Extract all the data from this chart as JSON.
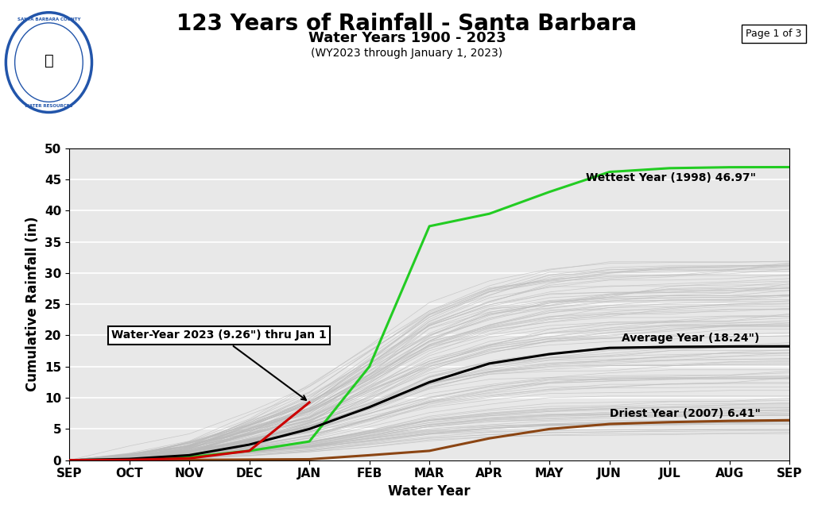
{
  "title": "123 Years of Rainfall - Santa Barbara",
  "subtitle": "Water Years 1900 - 2023",
  "sub_subtitle": "(WY2023 through January 1, 2023)",
  "page_label": "Page 1 of 3",
  "xlabel": "Water Year",
  "ylabel": "Cumulative Rainfall (in)",
  "ylim": [
    0,
    50
  ],
  "months": [
    "SEP",
    "OCT",
    "NOV",
    "DEC",
    "JAN",
    "FEB",
    "MAR",
    "APR",
    "MAY",
    "JUN",
    "JUL",
    "AUG",
    "SEP"
  ],
  "background_color": "#e8e8e8",
  "figure_background": "#ffffff",
  "wettest_label": "Wettest Year (1998) 46.97\"",
  "wettest_color": "#22cc22",
  "wettest_data": [
    0,
    0.1,
    0.5,
    1.5,
    3.0,
    15.0,
    37.5,
    39.5,
    43.0,
    46.2,
    46.8,
    46.95,
    46.97
  ],
  "driest_label": "Driest Year (2007) 6.41\"",
  "driest_color": "#8B4513",
  "driest_data": [
    0,
    0.0,
    0.05,
    0.1,
    0.15,
    0.8,
    1.5,
    3.5,
    5.0,
    5.8,
    6.1,
    6.3,
    6.41
  ],
  "average_label": "Average Year (18.24\")",
  "average_color": "#000000",
  "average_data": [
    0,
    0.2,
    0.8,
    2.5,
    5.0,
    8.5,
    12.5,
    15.5,
    17.0,
    18.0,
    18.15,
    18.22,
    18.24
  ],
  "wy2023_label": "Water-Year 2023 (9.26\") thru Jan 1",
  "wy2023_color": "#cc0000",
  "wy2023_data": [
    0,
    0.05,
    0.3,
    1.5,
    9.26
  ],
  "wy2023_months_count": 5,
  "gray_line_color": "#bbbbbb",
  "gray_line_alpha": 0.7,
  "title_fontsize": 20,
  "subtitle_fontsize": 13,
  "sub_subtitle_fontsize": 10,
  "axis_label_fontsize": 12,
  "tick_fontsize": 11,
  "annotation_fontsize": 10,
  "grid_color": "#cccccc"
}
